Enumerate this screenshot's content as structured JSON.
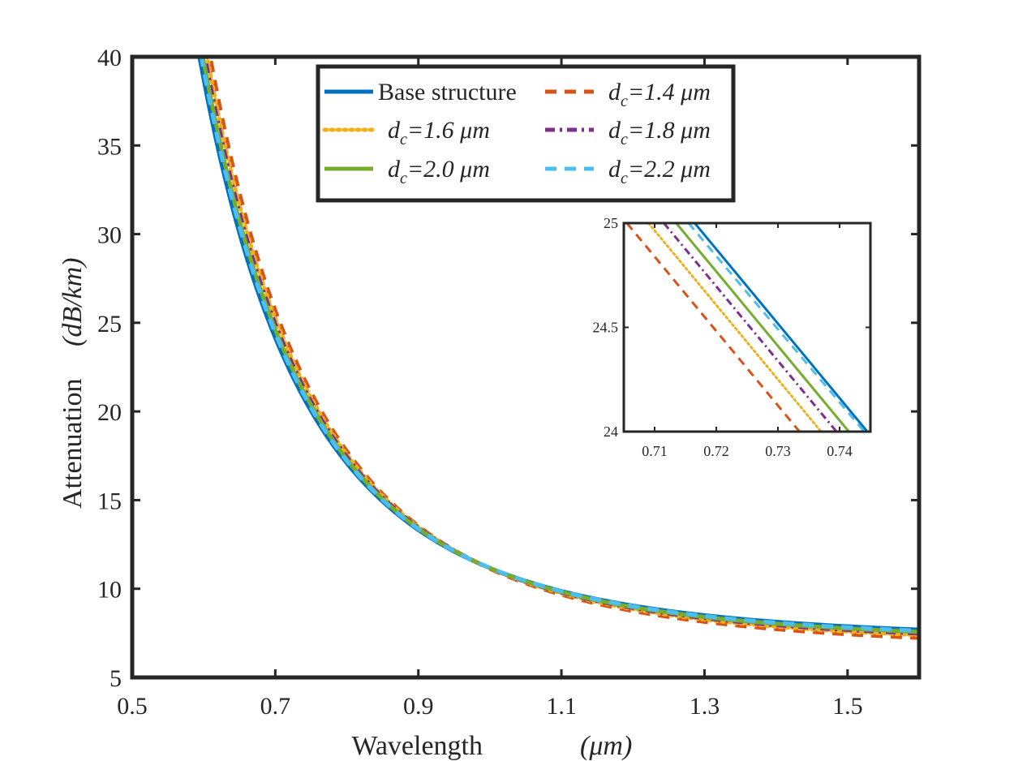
{
  "chart_data": {
    "type": "line",
    "main": {
      "xlabel": "Wavelength",
      "xlabel_unit": "(μm)",
      "ylabel": "Attenuation",
      "ylabel_unit": "(dB/km)",
      "xlim": [
        0.5,
        1.6
      ],
      "ylim": [
        5,
        40
      ],
      "xticks": [
        "0.5",
        "0.7",
        "0.9",
        "1.1",
        "1.3",
        "1.5"
      ],
      "yticks": [
        "5",
        "10",
        "15",
        "20",
        "25",
        "30",
        "35",
        "40"
      ],
      "grid": false,
      "legend_position": "top-center"
    },
    "inset": {
      "xlim": [
        0.705,
        0.745
      ],
      "ylim": [
        24,
        25
      ],
      "xticks": [
        "0.71",
        "0.72",
        "0.73",
        "0.74"
      ],
      "yticks": [
        "24",
        "24.5",
        "25"
      ],
      "position": "right-middle"
    },
    "series": [
      {
        "name": "Base structure",
        "legend": {
          "prefix": "Base structure",
          "sub": "",
          "suffix": ""
        },
        "color": "#0072BD",
        "dash": "solid",
        "model": {
          "a": 4.1,
          "p": 1.75,
          "c": 7.07
        },
        "inset_crossings": [
          0.7165,
          0.7445
        ]
      },
      {
        "name": "dc=1.4 μm",
        "legend": {
          "prefix": "d",
          "sub": "c",
          "suffix": "=1.4 μm"
        },
        "color": "#D95319",
        "dash": "dashed",
        "model": {
          "a": 4.6,
          "p": 1.72,
          "c": 6.53
        },
        "inset_crossings": [
          0.7055,
          0.7335
        ]
      },
      {
        "name": "dc=1.6 μm",
        "legend": {
          "prefix": "d",
          "sub": "c",
          "suffix": "=1.6 μm"
        },
        "color": "#EDB120",
        "dash": "dotted",
        "model": {
          "a": 4.45,
          "p": 1.73,
          "c": 6.71
        },
        "inset_crossings": [
          0.709,
          0.737
        ]
      },
      {
        "name": "dc=1.8 μm",
        "legend": {
          "prefix": "d",
          "sub": "c",
          "suffix": "=1.8 μm"
        },
        "color": "#7E2F8E",
        "dash": "dashdot",
        "model": {
          "a": 4.35,
          "p": 1.74,
          "c": 6.82
        },
        "inset_crossings": [
          0.7115,
          0.7395
        ]
      },
      {
        "name": "dc=2.0 μm",
        "legend": {
          "prefix": "d",
          "sub": "c",
          "suffix": "=2.0 μm"
        },
        "color": "#77AC30",
        "dash": "solid",
        "model": {
          "a": 4.25,
          "p": 1.745,
          "c": 6.92
        },
        "inset_crossings": [
          0.7135,
          0.7415
        ]
      },
      {
        "name": "dc=2.2 μm",
        "legend": {
          "prefix": "d",
          "sub": "c",
          "suffix": "=2.2 μm"
        },
        "color": "#4DBEEE",
        "dash": "dashed",
        "model": {
          "a": 4.18,
          "p": 1.75,
          "c": 7.0
        },
        "inset_crossings": [
          0.7155,
          0.744
        ]
      }
    ]
  }
}
